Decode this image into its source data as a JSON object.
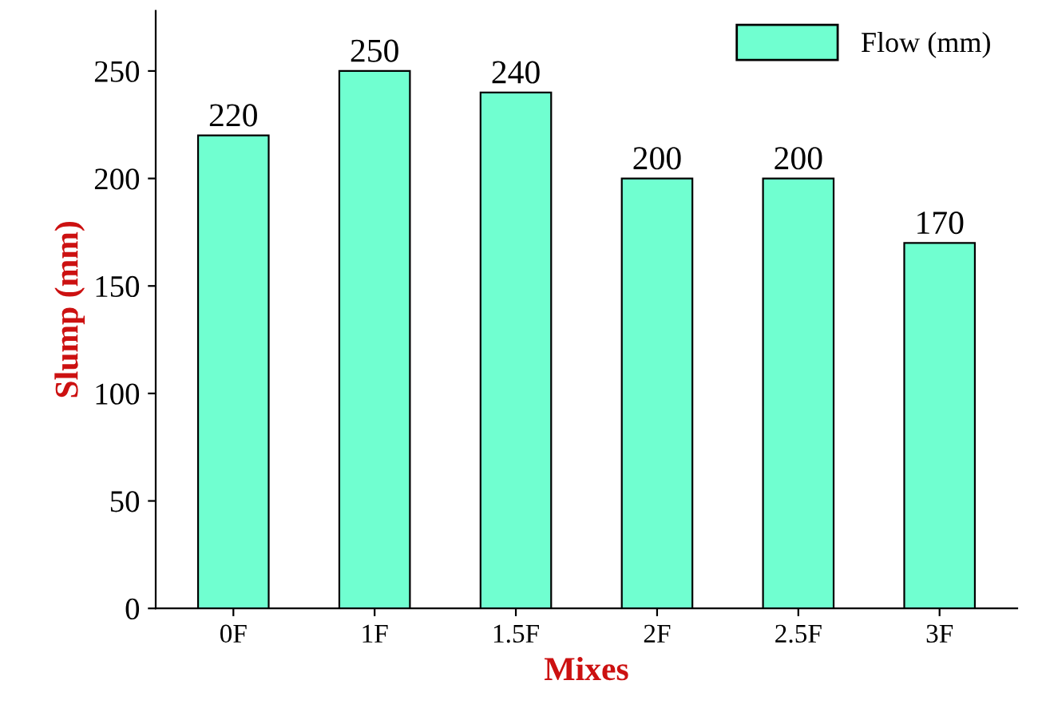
{
  "chart_data": {
    "type": "bar",
    "xlabel": "Mixes",
    "ylabel": "Slump (mm)",
    "categories": [
      "0F",
      "1F",
      "1.5F",
      "2F",
      "2.5F",
      "3F"
    ],
    "series": [
      {
        "name": "Flow (mm)",
        "color": "#70ffd0",
        "values": [
          220,
          250,
          240,
          200,
          200,
          170
        ]
      }
    ],
    "ylim": [
      0,
      278
    ],
    "yticks": [
      0,
      50,
      100,
      150,
      200,
      250
    ],
    "data_labels": true,
    "legend": "top right",
    "grid": false
  }
}
